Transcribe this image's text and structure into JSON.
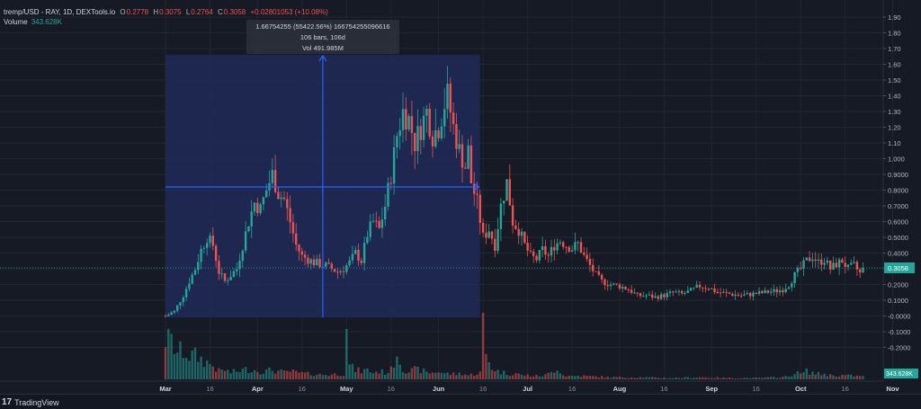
{
  "legend": {
    "symbol": "tremp/USD - RAY, 1D, DEXTools.io",
    "open_label": "O",
    "open": "0.2778",
    "high_label": "H",
    "high": "0.3075",
    "low_label": "L",
    "low": "0.2764",
    "close_label": "C",
    "close": "0.3058",
    "change": "+0.02801053 (+10.08%)",
    "volume_label": "Volume",
    "volume": "343.628K"
  },
  "measure": {
    "line1": "1.66754255 (55422.56%) 166754255096616",
    "line2": "106 bars, 106d",
    "line3": "Vol 491.985M"
  },
  "footer": {
    "brand": "TradingView"
  },
  "colors": {
    "up": "#26a69a",
    "down": "#ef5350",
    "background": "#161a25",
    "grid": "#222631",
    "measure_box": "#1e2a57",
    "measure_line": "#2962ff",
    "price_tag": "#26a69a",
    "volume_tag": "#26a69a"
  },
  "chart_data": {
    "type": "candlestick",
    "y_axis_ticks": [
      "1.90",
      "1.80",
      "1.70",
      "1.60",
      "1.50",
      "1.40",
      "1.30",
      "1.20",
      "1.10",
      "1.000",
      "0.9000",
      "0.8000",
      "0.7000",
      "0.6000",
      "0.5000",
      "0.4000",
      "0.3000",
      "0.2000",
      "0.1000",
      "-0.0000",
      "-0.1000",
      "-0.2000"
    ],
    "y_tick_values": [
      1.9,
      1.8,
      1.7,
      1.6,
      1.5,
      1.4,
      1.3,
      1.2,
      1.1,
      1.0,
      0.9,
      0.8,
      0.7,
      0.6,
      0.5,
      0.4,
      0.3,
      0.2,
      0.1,
      0.0,
      -0.1,
      -0.2
    ],
    "ylim": [
      -0.28,
      1.95
    ],
    "x_axis_ticks": [
      "Mar",
      "16",
      "Apr",
      "16",
      "May",
      "16",
      "Jun",
      "16",
      "Jul",
      "16",
      "Aug",
      "16",
      "Sep",
      "16",
      "Oct",
      "16",
      "Nov"
    ],
    "x_tick_days": [
      0,
      15,
      31,
      46,
      61,
      76,
      92,
      107,
      122,
      137,
      153,
      168,
      184,
      199,
      214,
      229,
      245
    ],
    "first_day": "Mar 1",
    "n_days": 236,
    "last_price": "0.3058",
    "last_price_value": 0.3058,
    "last_volume": "343.628K",
    "close_waypoints": [
      [
        0,
        0.0
      ],
      [
        3,
        0.03
      ],
      [
        6,
        0.13
      ],
      [
        8,
        0.22
      ],
      [
        10,
        0.3
      ],
      [
        12,
        0.42
      ],
      [
        14,
        0.5
      ],
      [
        16,
        0.45
      ],
      [
        18,
        0.28
      ],
      [
        20,
        0.22
      ],
      [
        22,
        0.26
      ],
      [
        24,
        0.3
      ],
      [
        26,
        0.45
      ],
      [
        28,
        0.6
      ],
      [
        30,
        0.72
      ],
      [
        32,
        0.68
      ],
      [
        34,
        0.8
      ],
      [
        36,
        0.9
      ],
      [
        38,
        0.78
      ],
      [
        40,
        0.74
      ],
      [
        42,
        0.6
      ],
      [
        44,
        0.45
      ],
      [
        46,
        0.38
      ],
      [
        48,
        0.36
      ],
      [
        50,
        0.34
      ],
      [
        52,
        0.33
      ],
      [
        54,
        0.32
      ],
      [
        56,
        0.3
      ],
      [
        58,
        0.28
      ],
      [
        60,
        0.3
      ],
      [
        62,
        0.34
      ],
      [
        64,
        0.4
      ],
      [
        66,
        0.35
      ],
      [
        68,
        0.52
      ],
      [
        70,
        0.6
      ],
      [
        72,
        0.55
      ],
      [
        74,
        0.7
      ],
      [
        76,
        0.9
      ],
      [
        78,
        1.15
      ],
      [
        80,
        1.3
      ],
      [
        82,
        1.25
      ],
      [
        84,
        1.1
      ],
      [
        86,
        1.2
      ],
      [
        88,
        1.3
      ],
      [
        90,
        1.15
      ],
      [
        92,
        1.2
      ],
      [
        94,
        1.35
      ],
      [
        95,
        1.4
      ],
      [
        97,
        1.2
      ],
      [
        99,
        1.05
      ],
      [
        101,
        0.95
      ],
      [
        102,
        1.05
      ],
      [
        103,
        0.85
      ],
      [
        105,
        0.72
      ],
      [
        107,
        0.5
      ],
      [
        109,
        0.55
      ],
      [
        111,
        0.45
      ],
      [
        113,
        0.7
      ],
      [
        115,
        0.85
      ],
      [
        117,
        0.6
      ],
      [
        119,
        0.55
      ],
      [
        121,
        0.45
      ],
      [
        123,
        0.38
      ],
      [
        125,
        0.36
      ],
      [
        127,
        0.42
      ],
      [
        129,
        0.38
      ],
      [
        131,
        0.45
      ],
      [
        133,
        0.48
      ],
      [
        135,
        0.45
      ],
      [
        137,
        0.43
      ],
      [
        139,
        0.46
      ],
      [
        141,
        0.38
      ],
      [
        143,
        0.32
      ],
      [
        145,
        0.26
      ],
      [
        147,
        0.22
      ],
      [
        150,
        0.2
      ],
      [
        153,
        0.19
      ],
      [
        156,
        0.17
      ],
      [
        159,
        0.13
      ],
      [
        162,
        0.13
      ],
      [
        165,
        0.12
      ],
      [
        168,
        0.13
      ],
      [
        171,
        0.15
      ],
      [
        174,
        0.14
      ],
      [
        177,
        0.16
      ],
      [
        180,
        0.19
      ],
      [
        183,
        0.18
      ],
      [
        186,
        0.15
      ],
      [
        190,
        0.14
      ],
      [
        194,
        0.13
      ],
      [
        198,
        0.14
      ],
      [
        202,
        0.15
      ],
      [
        206,
        0.16
      ],
      [
        208,
        0.17
      ],
      [
        210,
        0.2
      ],
      [
        212,
        0.26
      ],
      [
        214,
        0.3
      ],
      [
        216,
        0.35
      ],
      [
        218,
        0.38
      ],
      [
        220,
        0.34
      ],
      [
        222,
        0.36
      ],
      [
        224,
        0.3
      ],
      [
        226,
        0.33
      ],
      [
        228,
        0.35
      ],
      [
        230,
        0.3
      ],
      [
        232,
        0.32
      ],
      [
        234,
        0.27
      ],
      [
        235,
        0.3058
      ]
    ],
    "volume_profile": [
      [
        0,
        60
      ],
      [
        2,
        55
      ],
      [
        4,
        40
      ],
      [
        6,
        42
      ],
      [
        8,
        35
      ],
      [
        10,
        35
      ],
      [
        12,
        30
      ],
      [
        14,
        25
      ],
      [
        16,
        20
      ],
      [
        18,
        12
      ],
      [
        20,
        14
      ],
      [
        22,
        10
      ],
      [
        24,
        12
      ],
      [
        26,
        14
      ],
      [
        28,
        15
      ],
      [
        30,
        14
      ],
      [
        32,
        12
      ],
      [
        34,
        12
      ],
      [
        36,
        14
      ],
      [
        38,
        12
      ],
      [
        40,
        10
      ],
      [
        42,
        12
      ],
      [
        44,
        10
      ],
      [
        46,
        9
      ],
      [
        48,
        8
      ],
      [
        50,
        8
      ],
      [
        52,
        7
      ],
      [
        54,
        7
      ],
      [
        56,
        7
      ],
      [
        58,
        8
      ],
      [
        60,
        8
      ],
      [
        61,
        95
      ],
      [
        62,
        20
      ],
      [
        64,
        14
      ],
      [
        66,
        12
      ],
      [
        68,
        14
      ],
      [
        70,
        10
      ],
      [
        72,
        12
      ],
      [
        74,
        10
      ],
      [
        76,
        14
      ],
      [
        78,
        40
      ],
      [
        80,
        16
      ],
      [
        82,
        12
      ],
      [
        84,
        14
      ],
      [
        86,
        14
      ],
      [
        88,
        10
      ],
      [
        90,
        10
      ],
      [
        92,
        12
      ],
      [
        94,
        9
      ],
      [
        96,
        8
      ],
      [
        98,
        8
      ],
      [
        100,
        9
      ],
      [
        102,
        6
      ],
      [
        104,
        8
      ],
      [
        106,
        10
      ],
      [
        107,
        80
      ],
      [
        108,
        35
      ],
      [
        110,
        18
      ],
      [
        112,
        12
      ],
      [
        114,
        10
      ],
      [
        116,
        8
      ],
      [
        118,
        9
      ],
      [
        120,
        6
      ],
      [
        122,
        6
      ],
      [
        124,
        5
      ],
      [
        126,
        5
      ],
      [
        128,
        6
      ],
      [
        130,
        10
      ],
      [
        132,
        18
      ],
      [
        134,
        6
      ],
      [
        136,
        5
      ],
      [
        140,
        5
      ],
      [
        145,
        4
      ],
      [
        150,
        3
      ],
      [
        160,
        3
      ],
      [
        170,
        2
      ],
      [
        180,
        3
      ],
      [
        190,
        2
      ],
      [
        200,
        2
      ],
      [
        205,
        3
      ],
      [
        210,
        4
      ],
      [
        212,
        10
      ],
      [
        214,
        8
      ],
      [
        216,
        12
      ],
      [
        218,
        10
      ],
      [
        220,
        8
      ],
      [
        222,
        8
      ],
      [
        224,
        6
      ],
      [
        228,
        6
      ],
      [
        232,
        5
      ],
      [
        235,
        4
      ]
    ],
    "volume_max": 100,
    "measure_range_days": [
      0,
      106
    ],
    "measure_range_prices": [
      -0.01,
      1.66
    ],
    "measure_crosshair_price": 0.82
  }
}
